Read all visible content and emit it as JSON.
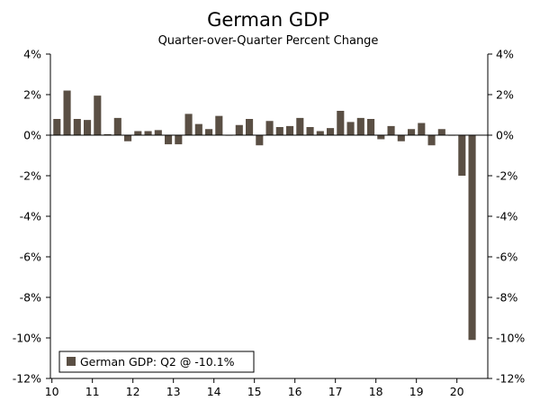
{
  "chart_data": {
    "type": "bar",
    "title": "German GDP",
    "subtitle": "Quarter-over-Quarter Percent Change",
    "xlabel": "",
    "ylabel": "",
    "ylim": [
      -12,
      4
    ],
    "y_ticks": [
      4,
      2,
      0,
      -2,
      -4,
      -6,
      -8,
      -10,
      -12
    ],
    "y_tick_labels": [
      "4%",
      "2%",
      "0%",
      "-2%",
      "-4%",
      "-6%",
      "-8%",
      "-10%",
      "-12%"
    ],
    "x_year_labels": [
      "10",
      "11",
      "12",
      "13",
      "14",
      "15",
      "16",
      "17",
      "18",
      "19",
      "20"
    ],
    "grid": false,
    "bar_color": "#5a4f44",
    "legend": {
      "label": "German GDP: Q2 @ -10.1%",
      "position": "bottom-left"
    },
    "quarters": [
      "2010Q1",
      "2010Q2",
      "2010Q3",
      "2010Q4",
      "2011Q1",
      "2011Q2",
      "2011Q3",
      "2011Q4",
      "2012Q1",
      "2012Q2",
      "2012Q3",
      "2012Q4",
      "2013Q1",
      "2013Q2",
      "2013Q3",
      "2013Q4",
      "2014Q1",
      "2014Q2",
      "2014Q3",
      "2014Q4",
      "2015Q1",
      "2015Q2",
      "2015Q3",
      "2015Q4",
      "2016Q1",
      "2016Q2",
      "2016Q3",
      "2016Q4",
      "2017Q1",
      "2017Q2",
      "2017Q3",
      "2017Q4",
      "2018Q1",
      "2018Q2",
      "2018Q3",
      "2018Q4",
      "2019Q1",
      "2019Q2",
      "2019Q3",
      "2019Q4",
      "2020Q1",
      "2020Q2"
    ],
    "series": [
      {
        "name": "German GDP",
        "values": [
          0.8,
          2.2,
          0.8,
          0.75,
          1.95,
          0.05,
          0.85,
          -0.3,
          0.2,
          0.2,
          0.25,
          -0.45,
          -0.45,
          1.05,
          0.55,
          0.3,
          0.95,
          0.0,
          0.5,
          0.8,
          -0.5,
          0.7,
          0.4,
          0.45,
          0.85,
          0.4,
          0.2,
          0.35,
          1.2,
          0.65,
          0.85,
          0.8,
          -0.2,
          0.45,
          -0.3,
          0.3,
          0.6,
          -0.5,
          0.3,
          0.0,
          -2.0,
          -10.1
        ]
      }
    ]
  }
}
